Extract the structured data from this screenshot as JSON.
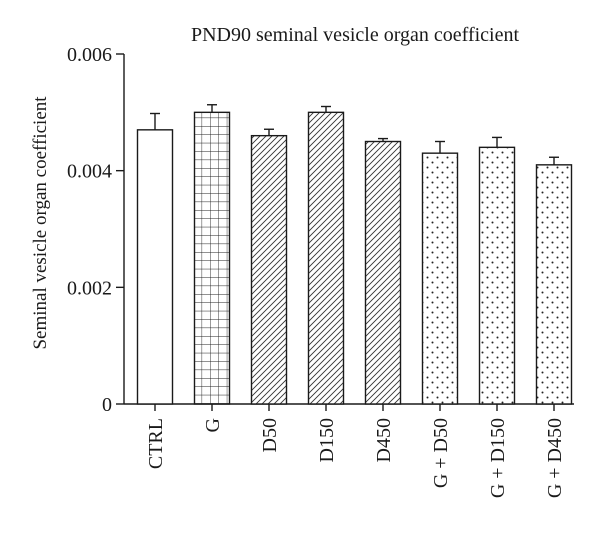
{
  "chart_data": {
    "type": "bar",
    "title": "PND90 seminal vesicle organ coefficient",
    "ylabel": "Seminal vesicle organ coefficient",
    "xlabel": "",
    "ylim": [
      0,
      0.006
    ],
    "yticks": [
      "0",
      "0.002",
      "0.004",
      "0.006"
    ],
    "grid": false,
    "categories": [
      "CTRL",
      "G",
      "D50",
      "D150",
      "D450",
      "G + D50",
      "G + D150",
      "G + D450"
    ],
    "values": [
      0.0047,
      0.005,
      0.0046,
      0.005,
      0.0045,
      0.0043,
      0.0044,
      0.0041
    ],
    "errors": [
      0.00028,
      0.00013,
      0.00011,
      0.0001,
      5e-05,
      0.0002,
      0.00017,
      0.00013
    ],
    "fills": [
      "none",
      "grid",
      "diagonal",
      "diagonal",
      "diagonal",
      "dots",
      "dots",
      "dots"
    ]
  }
}
